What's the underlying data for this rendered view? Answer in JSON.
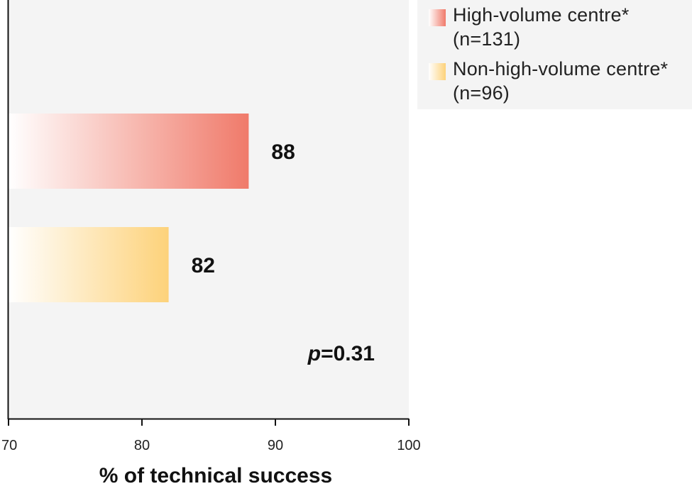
{
  "chart_data": {
    "type": "bar",
    "orientation": "horizontal",
    "title": "",
    "xlabel": "% of technical success",
    "ylabel": "",
    "xlim": [
      70,
      100
    ],
    "x_ticks": [
      70,
      80,
      90,
      100
    ],
    "series": [
      {
        "name": "High-volume centre*",
        "name_line1": "High-volume centre*",
        "name_line2": "(n=131)",
        "n_label": "(n=131)",
        "value": 88,
        "label": "88",
        "color": "#f07a6a"
      },
      {
        "name": "Non-high-volume centre*",
        "name_line1": "Non-high-volume centre*",
        "name_line2": "(n=96)",
        "n_label": "(n=96)",
        "value": 82,
        "label": "82",
        "color": "#fdd27a"
      }
    ],
    "annotation": {
      "p_symbol": "p",
      "p_text": "=0.31"
    },
    "legend_position": "top-right",
    "grid": false
  }
}
